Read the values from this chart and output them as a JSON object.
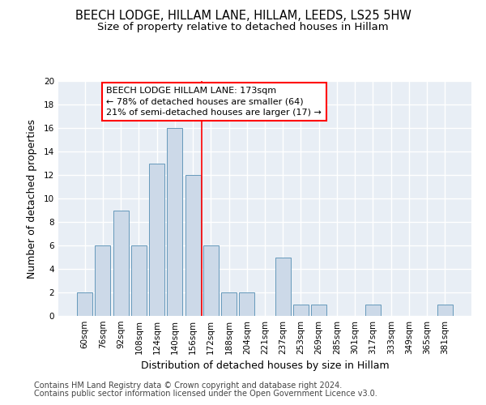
{
  "title1": "BEECH LODGE, HILLAM LANE, HILLAM, LEEDS, LS25 5HW",
  "title2": "Size of property relative to detached houses in Hillam",
  "xlabel": "Distribution of detached houses by size in Hillam",
  "ylabel": "Number of detached properties",
  "bar_color": "#ccd9e8",
  "bar_edge_color": "#6699bb",
  "categories": [
    "60sqm",
    "76sqm",
    "92sqm",
    "108sqm",
    "124sqm",
    "140sqm",
    "156sqm",
    "172sqm",
    "188sqm",
    "204sqm",
    "221sqm",
    "237sqm",
    "253sqm",
    "269sqm",
    "285sqm",
    "301sqm",
    "317sqm",
    "333sqm",
    "349sqm",
    "365sqm",
    "381sqm"
  ],
  "values": [
    2,
    6,
    9,
    6,
    13,
    16,
    12,
    6,
    2,
    2,
    0,
    5,
    1,
    1,
    0,
    0,
    1,
    0,
    0,
    0,
    1
  ],
  "property_label": "BEECH LODGE HILLAM LANE: 173sqm",
  "pct_smaller": 78,
  "count_smaller": 64,
  "pct_larger": 21,
  "count_larger": 17,
  "vline_position": 7.0,
  "ylim": [
    0,
    20
  ],
  "yticks": [
    0,
    2,
    4,
    6,
    8,
    10,
    12,
    14,
    16,
    18,
    20
  ],
  "footer1": "Contains HM Land Registry data © Crown copyright and database right 2024.",
  "footer2": "Contains public sector information licensed under the Open Government Licence v3.0.",
  "background_color": "#e8eef5",
  "grid_color": "#ffffff",
  "title_fontsize": 10.5,
  "subtitle_fontsize": 9.5,
  "axis_label_fontsize": 9,
  "tick_fontsize": 7.5,
  "annot_fontsize": 8,
  "footer_fontsize": 7
}
